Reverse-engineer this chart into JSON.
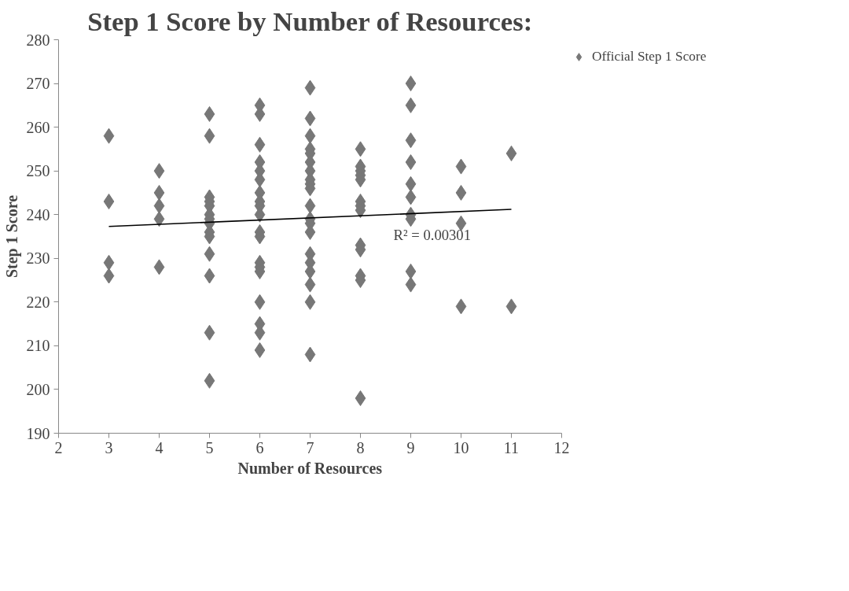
{
  "chart_data": {
    "type": "scatter",
    "title": "Step 1 Score by Number of Resources:",
    "xlabel": "Number of Resources",
    "ylabel": "Step 1 Score",
    "xlim": [
      2,
      12
    ],
    "xticks": [
      2,
      3,
      4,
      5,
      6,
      7,
      8,
      9,
      10,
      11,
      12
    ],
    "ylim": [
      190,
      280
    ],
    "yticks": [
      190,
      200,
      210,
      220,
      230,
      240,
      250,
      260,
      270,
      280
    ],
    "grid": false,
    "legend": "right",
    "marker": "diamond",
    "series": [
      {
        "name": "Official Step 1 Score",
        "color": "#777777",
        "x": [
          3,
          3,
          3,
          3,
          4,
          4,
          4,
          4,
          4,
          5,
          5,
          5,
          5,
          5,
          5,
          5,
          5,
          5,
          5,
          5,
          5,
          5,
          5,
          6,
          6,
          6,
          6,
          6,
          6,
          6,
          6,
          6,
          6,
          6,
          6,
          6,
          6,
          6,
          6,
          6,
          6,
          6,
          7,
          7,
          7,
          7,
          7,
          7,
          7,
          7,
          7,
          7,
          7,
          7,
          7,
          7,
          7,
          7,
          7,
          7,
          7,
          7,
          8,
          8,
          8,
          8,
          8,
          8,
          8,
          8,
          8,
          8,
          8,
          8,
          8,
          9,
          9,
          9,
          9,
          9,
          9,
          9,
          9,
          9,
          9,
          10,
          10,
          10,
          10,
          11,
          11
        ],
        "values": [
          258,
          243,
          229,
          226,
          250,
          245,
          242,
          239,
          228,
          263,
          258,
          244,
          243,
          242,
          240,
          239,
          238,
          236,
          235,
          231,
          226,
          213,
          202,
          265,
          263,
          256,
          252,
          250,
          248,
          245,
          243,
          242,
          240,
          236,
          235,
          229,
          228,
          227,
          220,
          215,
          213,
          209,
          269,
          262,
          258,
          255,
          254,
          252,
          250,
          248,
          247,
          246,
          242,
          239,
          238,
          236,
          231,
          229,
          227,
          224,
          220,
          208,
          255,
          251,
          250,
          249,
          248,
          243,
          242,
          241,
          233,
          232,
          226,
          225,
          198,
          270,
          265,
          257,
          252,
          247,
          244,
          240,
          239,
          227,
          224,
          251,
          245,
          238,
          219,
          254,
          219
        ]
      },
      {
        "type": "line",
        "marker": "none",
        "color": "#000000",
        "x": [
          3,
          11
        ],
        "values": [
          237.3,
          241.2
        ]
      }
    ],
    "annotations": [
      "R² = 0.00301"
    ]
  }
}
